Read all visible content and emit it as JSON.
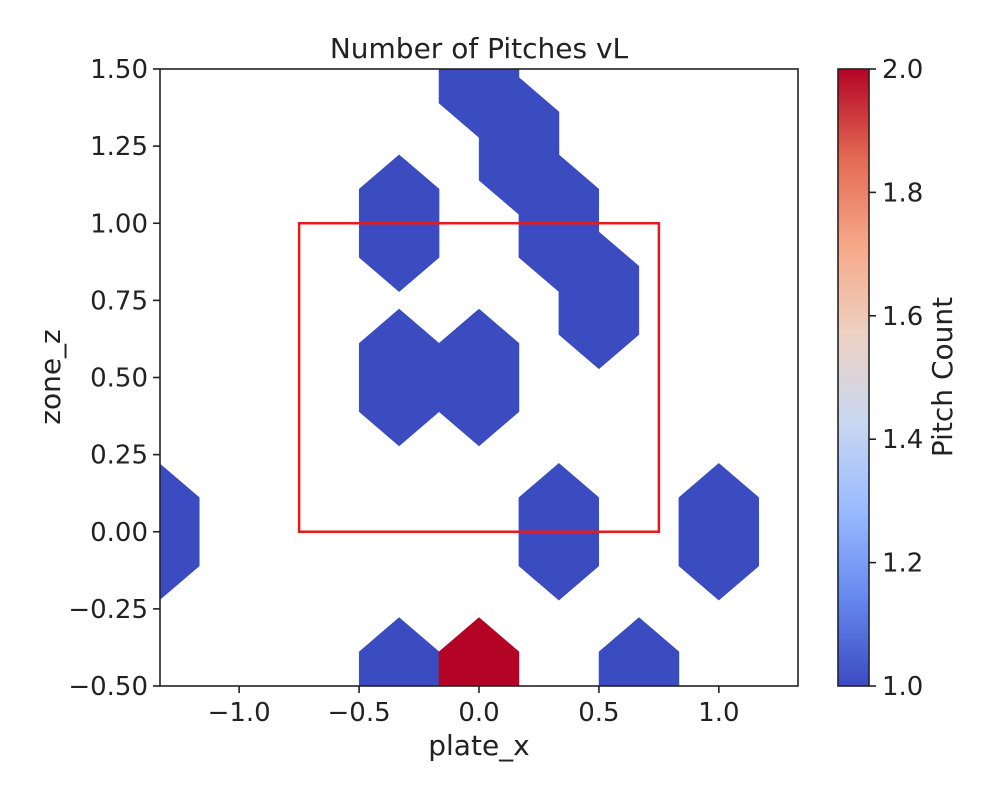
{
  "chart_data": {
    "type": "heatmap",
    "subtype": "hexbin",
    "title": "Number of Pitches vL",
    "xlabel": "plate_x",
    "ylabel": "zone_z",
    "xlim": [
      -1.33,
      1.33
    ],
    "ylim": [
      -0.5,
      1.5
    ],
    "x_ticks": [
      -1.0,
      -0.5,
      0.0,
      0.5,
      1.0
    ],
    "x_tick_labels": [
      "−1.0",
      "−0.5",
      "0.0",
      "0.5",
      "1.0"
    ],
    "y_ticks": [
      -0.5,
      -0.25,
      0.0,
      0.25,
      0.5,
      0.75,
      1.0,
      1.25,
      1.5
    ],
    "y_tick_labels": [
      "−0.50",
      "−0.25",
      "0.00",
      "0.25",
      "0.50",
      "0.75",
      "1.00",
      "1.25",
      "1.50"
    ],
    "grid": false,
    "colormap": "coolwarm",
    "colorbar": {
      "label": "Pitch Count",
      "range": [
        1.0,
        2.0
      ],
      "ticks": [
        1.0,
        1.2,
        1.4,
        1.6,
        1.8,
        2.0
      ],
      "tick_labels": [
        "1.0",
        "1.2",
        "1.4",
        "1.6",
        "1.8",
        "2.0"
      ],
      "stops": [
        "#3b4cc0",
        "#6788ee",
        "#9abbff",
        "#c9d7f0",
        "#edd1c2",
        "#f7a889",
        "#e26952",
        "#b40426"
      ]
    },
    "hexbins": [
      {
        "x": 0.0,
        "y": 1.5,
        "count": 1
      },
      {
        "x": 0.167,
        "y": 1.25,
        "count": 1
      },
      {
        "x": -0.333,
        "y": 1.0,
        "count": 1
      },
      {
        "x": 0.333,
        "y": 1.0,
        "count": 1
      },
      {
        "x": 0.5,
        "y": 0.75,
        "count": 1
      },
      {
        "x": -0.333,
        "y": 0.5,
        "count": 1
      },
      {
        "x": 0.0,
        "y": 0.5,
        "count": 1
      },
      {
        "x": -1.333,
        "y": 0.0,
        "count": 1
      },
      {
        "x": 0.333,
        "y": 0.0,
        "count": 1
      },
      {
        "x": 1.0,
        "y": 0.0,
        "count": 1
      },
      {
        "x": -0.333,
        "y": -0.5,
        "count": 1
      },
      {
        "x": 0.0,
        "y": -0.5,
        "count": 2
      },
      {
        "x": 0.667,
        "y": -0.5,
        "count": 1
      }
    ],
    "strike_zone": {
      "x0": -0.75,
      "x1": 0.75,
      "y0": 0.0,
      "y1": 1.0,
      "color": "#e41a1c"
    },
    "hex_color_low": "#3b4cc0",
    "hex_color_high": "#b40426"
  }
}
